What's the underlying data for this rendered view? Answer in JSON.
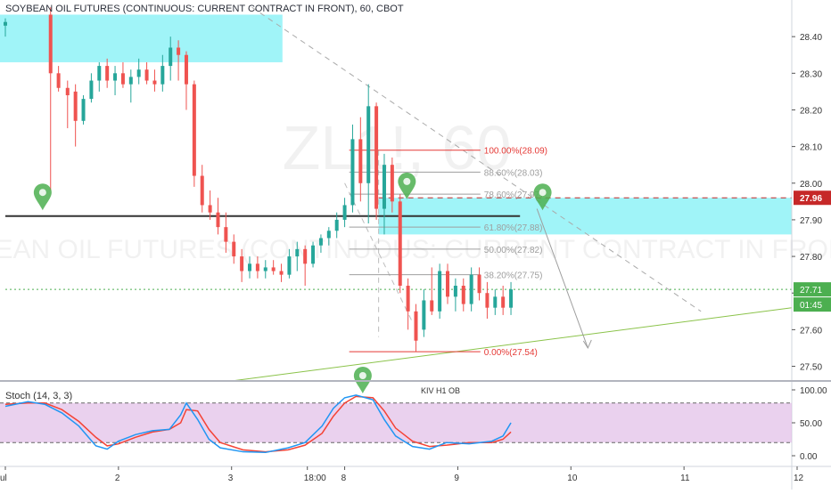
{
  "chart_data": {
    "type": "candlestick",
    "title": "SOYBEAN OIL FUTURES (CONTINUOUS: CURRENT CONTRACT IN FRONT), 60, CBOT",
    "watermark_symbol": "ZL1!, 60",
    "watermark_name": "SOYBEAN OIL FUTURES (CONTINUOUS: CURRENT CONTRACT IN FRONT)",
    "price_axis": {
      "ticks": [
        28.4,
        28.3,
        28.2,
        28.1,
        28.0,
        27.9,
        27.8,
        27.7,
        27.6,
        27.5
      ],
      "tick_labels": [
        "28.40",
        "28.30",
        "28.20",
        "28.10",
        "28.00",
        "27.90",
        "27.80",
        "27.70",
        "27.60",
        "27.50"
      ],
      "range": [
        27.46,
        28.5
      ],
      "last_price": 27.71,
      "last_price_label": "27.71",
      "countdown_label": "01:45",
      "level_marker": 27.96,
      "level_marker_label": "27.96"
    },
    "time_axis": {
      "labels": [
        "ul",
        "2",
        "3",
        "18:00",
        "8",
        "9",
        "10",
        "11",
        "12"
      ],
      "positions": [
        0,
        1,
        2,
        2.67,
        3,
        4,
        5,
        6,
        7
      ],
      "range": [
        0,
        7
      ]
    },
    "candles": [
      {
        "t": 0.0,
        "o": 28.43,
        "h": 28.45,
        "l": 28.4,
        "c": 28.44
      },
      {
        "t": 0.4,
        "o": 28.46,
        "h": 28.48,
        "l": 27.98,
        "c": 28.3
      },
      {
        "t": 0.47,
        "o": 28.3,
        "h": 28.32,
        "l": 28.25,
        "c": 28.26
      },
      {
        "t": 0.55,
        "o": 28.26,
        "h": 28.28,
        "l": 28.15,
        "c": 28.24
      },
      {
        "t": 0.62,
        "o": 28.25,
        "h": 28.27,
        "l": 28.1,
        "c": 28.17
      },
      {
        "t": 0.69,
        "o": 28.17,
        "h": 28.24,
        "l": 28.16,
        "c": 28.23
      },
      {
        "t": 0.76,
        "o": 28.23,
        "h": 28.3,
        "l": 28.22,
        "c": 28.28
      },
      {
        "t": 0.83,
        "o": 28.28,
        "h": 28.33,
        "l": 28.25,
        "c": 28.32
      },
      {
        "t": 0.9,
        "o": 28.32,
        "h": 28.34,
        "l": 28.26,
        "c": 28.28
      },
      {
        "t": 0.97,
        "o": 28.28,
        "h": 28.32,
        "l": 28.24,
        "c": 28.3
      },
      {
        "t": 1.04,
        "o": 28.3,
        "h": 28.33,
        "l": 28.26,
        "c": 28.27
      },
      {
        "t": 1.11,
        "o": 28.27,
        "h": 28.31,
        "l": 28.22,
        "c": 28.29
      },
      {
        "t": 1.18,
        "o": 28.29,
        "h": 28.34,
        "l": 28.27,
        "c": 28.31
      },
      {
        "t": 1.25,
        "o": 28.31,
        "h": 28.33,
        "l": 28.27,
        "c": 28.28
      },
      {
        "t": 1.32,
        "o": 28.28,
        "h": 28.31,
        "l": 28.25,
        "c": 28.27
      },
      {
        "t": 1.39,
        "o": 28.27,
        "h": 28.35,
        "l": 28.25,
        "c": 28.32
      },
      {
        "t": 1.46,
        "o": 28.32,
        "h": 28.4,
        "l": 28.28,
        "c": 28.37
      },
      {
        "t": 1.53,
        "o": 28.37,
        "h": 28.39,
        "l": 28.28,
        "c": 28.35
      },
      {
        "t": 1.6,
        "o": 28.35,
        "h": 28.36,
        "l": 28.2,
        "c": 28.27
      },
      {
        "t": 1.67,
        "o": 28.27,
        "h": 28.28,
        "l": 27.99,
        "c": 28.02
      },
      {
        "t": 1.74,
        "o": 28.02,
        "h": 28.05,
        "l": 27.92,
        "c": 27.94
      },
      {
        "t": 1.81,
        "o": 27.94,
        "h": 27.98,
        "l": 27.9,
        "c": 27.92
      },
      {
        "t": 1.88,
        "o": 27.92,
        "h": 27.96,
        "l": 27.86,
        "c": 27.88
      },
      {
        "t": 1.95,
        "o": 27.88,
        "h": 27.92,
        "l": 27.81,
        "c": 27.84
      },
      {
        "t": 2.02,
        "o": 27.84,
        "h": 27.86,
        "l": 27.78,
        "c": 27.8
      },
      {
        "t": 2.09,
        "o": 27.8,
        "h": 27.82,
        "l": 27.73,
        "c": 27.76
      },
      {
        "t": 2.16,
        "o": 27.76,
        "h": 27.8,
        "l": 27.74,
        "c": 27.78
      },
      {
        "t": 2.23,
        "o": 27.78,
        "h": 27.8,
        "l": 27.74,
        "c": 27.76
      },
      {
        "t": 2.3,
        "o": 27.76,
        "h": 27.79,
        "l": 27.74,
        "c": 27.77
      },
      {
        "t": 2.37,
        "o": 27.77,
        "h": 27.79,
        "l": 27.75,
        "c": 27.76
      },
      {
        "t": 2.44,
        "o": 27.76,
        "h": 27.78,
        "l": 27.73,
        "c": 27.75
      },
      {
        "t": 2.51,
        "o": 27.75,
        "h": 27.82,
        "l": 27.74,
        "c": 27.8
      },
      {
        "t": 2.58,
        "o": 27.8,
        "h": 27.84,
        "l": 27.76,
        "c": 27.82
      },
      {
        "t": 2.65,
        "o": 27.82,
        "h": 27.83,
        "l": 27.72,
        "c": 27.78
      },
      {
        "t": 2.72,
        "o": 27.78,
        "h": 27.84,
        "l": 27.77,
        "c": 27.83
      },
      {
        "t": 2.79,
        "o": 27.83,
        "h": 27.86,
        "l": 27.81,
        "c": 27.85
      },
      {
        "t": 2.86,
        "o": 27.85,
        "h": 27.88,
        "l": 27.83,
        "c": 27.87
      },
      {
        "t": 2.93,
        "o": 27.87,
        "h": 27.92,
        "l": 27.85,
        "c": 27.9
      },
      {
        "t": 3.0,
        "o": 27.9,
        "h": 27.96,
        "l": 27.88,
        "c": 27.94
      },
      {
        "t": 3.07,
        "o": 27.94,
        "h": 28.16,
        "l": 27.92,
        "c": 28.12
      },
      {
        "t": 3.14,
        "o": 28.12,
        "h": 28.18,
        "l": 27.95,
        "c": 28.0
      },
      {
        "t": 3.21,
        "o": 28.0,
        "h": 28.27,
        "l": 27.89,
        "c": 28.21
      },
      {
        "t": 3.28,
        "o": 28.21,
        "h": 28.22,
        "l": 27.9,
        "c": 27.93
      },
      {
        "t": 3.35,
        "o": 27.93,
        "h": 28.08,
        "l": 27.86,
        "c": 28.05
      },
      {
        "t": 3.42,
        "o": 28.05,
        "h": 28.07,
        "l": 27.92,
        "c": 27.95
      },
      {
        "t": 3.49,
        "o": 27.95,
        "h": 27.97,
        "l": 27.7,
        "c": 27.72
      },
      {
        "t": 3.56,
        "o": 27.72,
        "h": 27.74,
        "l": 27.6,
        "c": 27.65
      },
      {
        "t": 3.63,
        "o": 27.65,
        "h": 27.67,
        "l": 27.54,
        "c": 27.57
      },
      {
        "t": 3.7,
        "o": 27.6,
        "h": 27.71,
        "l": 27.58,
        "c": 27.68
      },
      {
        "t": 3.77,
        "o": 27.68,
        "h": 27.77,
        "l": 27.64,
        "c": 27.65
      },
      {
        "t": 3.84,
        "o": 27.65,
        "h": 27.78,
        "l": 27.63,
        "c": 27.76
      },
      {
        "t": 3.91,
        "o": 27.76,
        "h": 27.78,
        "l": 27.67,
        "c": 27.69
      },
      {
        "t": 3.98,
        "o": 27.69,
        "h": 27.74,
        "l": 27.65,
        "c": 27.72
      },
      {
        "t": 4.05,
        "o": 27.72,
        "h": 27.74,
        "l": 27.65,
        "c": 27.67
      },
      {
        "t": 4.12,
        "o": 27.67,
        "h": 27.77,
        "l": 27.65,
        "c": 27.75
      },
      {
        "t": 4.19,
        "o": 27.75,
        "h": 27.77,
        "l": 27.68,
        "c": 27.7
      },
      {
        "t": 4.26,
        "o": 27.7,
        "h": 27.73,
        "l": 27.63,
        "c": 27.66
      },
      {
        "t": 4.33,
        "o": 27.66,
        "h": 27.71,
        "l": 27.64,
        "c": 27.69
      },
      {
        "t": 4.4,
        "o": 27.69,
        "h": 27.72,
        "l": 27.64,
        "c": 27.66
      },
      {
        "t": 4.47,
        "o": 27.66,
        "h": 27.73,
        "l": 27.64,
        "c": 27.71
      }
    ],
    "fibonacci": {
      "levels": [
        {
          "ratio": 1.0,
          "price": 28.09,
          "label": "100.00%(28.09)",
          "color": "#e53935"
        },
        {
          "ratio": 0.886,
          "price": 28.03,
          "label": "88.60%(28.03)",
          "color": "#9e9e9e"
        },
        {
          "ratio": 0.786,
          "price": 27.97,
          "label": "78.60%(27.97)",
          "color": "#9e9e9e"
        },
        {
          "ratio": 0.618,
          "price": 27.88,
          "label": "61.80%(27.88)",
          "color": "#9e9e9e"
        },
        {
          "ratio": 0.5,
          "price": 27.82,
          "label": "50.00%(27.82)",
          "color": "#9e9e9e"
        },
        {
          "ratio": 0.382,
          "price": 27.75,
          "label": "38.20%(27.75)",
          "color": "#9e9e9e"
        },
        {
          "ratio": 0.0,
          "price": 27.54,
          "label": "0.00%(27.54)",
          "color": "#e53935"
        }
      ],
      "t_start": 3.04,
      "t_end": 4.2
    },
    "zones": [
      {
        "t_start": 0.0,
        "t_end": 2.45,
        "price_top": 28.46,
        "price_bottom": 28.33,
        "color": "#80f0f5"
      },
      {
        "t_start": 3.3,
        "t_end": 7.0,
        "price_top": 27.96,
        "price_bottom": 27.86,
        "color": "#80f0f5"
      }
    ],
    "lines": [
      {
        "name": "horizontal-support",
        "t1": 0.0,
        "p1": 27.91,
        "t2": 4.55,
        "p2": 27.91,
        "color": "#333333",
        "style": "solid"
      },
      {
        "name": "descending-trendline",
        "t1": 2.18,
        "p1": 28.48,
        "t2": 6.15,
        "p2": 27.65,
        "color": "#aaaaaa",
        "style": "dashed"
      },
      {
        "name": "ascending-trendline",
        "t1": 2.0,
        "p1": 27.46,
        "t2": 7.0,
        "p2": 27.66,
        "color": "#8bc34a",
        "style": "solid"
      },
      {
        "name": "forecast-arrow",
        "t1": 4.7,
        "p1": 27.93,
        "t2": 5.15,
        "p2": 27.55,
        "color": "#9e9e9e",
        "style": "solid"
      },
      {
        "name": "level-27-96",
        "t1": 3.3,
        "p1": 27.96,
        "t2": 7.0,
        "p2": 27.96,
        "color": "#c62828",
        "style": "dashed"
      },
      {
        "name": "last-price-line",
        "t1": 0.0,
        "p1": 27.71,
        "t2": 7.0,
        "p2": 27.71,
        "color": "#4caf50",
        "style": "dotted"
      },
      {
        "name": "vertical-dashed",
        "t1": 3.3,
        "p1": 28.09,
        "t2": 3.3,
        "p2": 27.58,
        "color": "#bdbdbd",
        "style": "dashed"
      },
      {
        "name": "channel-dashed",
        "t1": 3.0,
        "p1": 28.0,
        "t2": 3.6,
        "p2": 27.62,
        "color": "#bdbdbd",
        "style": "dashed"
      }
    ],
    "markers": [
      {
        "t": 0.33,
        "price": 27.96,
        "color": "#4caf50"
      },
      {
        "t": 3.55,
        "price": 27.99,
        "color": "#4caf50"
      },
      {
        "t": 4.75,
        "price": 27.96,
        "color": "#4caf50"
      },
      {
        "t": 3.16,
        "price": 27.46,
        "color": "#4caf50"
      }
    ],
    "stochastic": {
      "label": "Stoch (14, 3, 3)",
      "annotation": "KIV H1 OB",
      "ticks": [
        100,
        50,
        0
      ],
      "tick_labels": [
        "100.00",
        "50.00",
        "0.00"
      ],
      "bands": [
        80,
        20
      ],
      "k": [
        {
          "t": 0.0,
          "v": 75
        },
        {
          "t": 0.2,
          "v": 82
        },
        {
          "t": 0.35,
          "v": 78
        },
        {
          "t": 0.5,
          "v": 65
        },
        {
          "t": 0.65,
          "v": 45
        },
        {
          "t": 0.8,
          "v": 15
        },
        {
          "t": 0.9,
          "v": 10
        },
        {
          "t": 1.0,
          "v": 22
        },
        {
          "t": 1.15,
          "v": 32
        },
        {
          "t": 1.3,
          "v": 38
        },
        {
          "t": 1.45,
          "v": 40
        },
        {
          "t": 1.55,
          "v": 62
        },
        {
          "t": 1.6,
          "v": 80
        },
        {
          "t": 1.7,
          "v": 55
        },
        {
          "t": 1.8,
          "v": 25
        },
        {
          "t": 1.9,
          "v": 12
        },
        {
          "t": 2.1,
          "v": 6
        },
        {
          "t": 2.3,
          "v": 5
        },
        {
          "t": 2.5,
          "v": 12
        },
        {
          "t": 2.65,
          "v": 20
        },
        {
          "t": 2.8,
          "v": 45
        },
        {
          "t": 2.9,
          "v": 72
        },
        {
          "t": 3.0,
          "v": 88
        },
        {
          "t": 3.1,
          "v": 92
        },
        {
          "t": 3.25,
          "v": 85
        },
        {
          "t": 3.35,
          "v": 55
        },
        {
          "t": 3.45,
          "v": 30
        },
        {
          "t": 3.6,
          "v": 14
        },
        {
          "t": 3.75,
          "v": 10
        },
        {
          "t": 3.9,
          "v": 20
        },
        {
          "t": 4.1,
          "v": 18
        },
        {
          "t": 4.3,
          "v": 22
        },
        {
          "t": 4.4,
          "v": 30
        },
        {
          "t": 4.47,
          "v": 50
        }
      ],
      "d": [
        {
          "t": 0.0,
          "v": 78
        },
        {
          "t": 0.2,
          "v": 80
        },
        {
          "t": 0.35,
          "v": 80
        },
        {
          "t": 0.5,
          "v": 70
        },
        {
          "t": 0.65,
          "v": 52
        },
        {
          "t": 0.8,
          "v": 28
        },
        {
          "t": 0.9,
          "v": 15
        },
        {
          "t": 1.0,
          "v": 18
        },
        {
          "t": 1.15,
          "v": 28
        },
        {
          "t": 1.3,
          "v": 36
        },
        {
          "t": 1.45,
          "v": 40
        },
        {
          "t": 1.55,
          "v": 50
        },
        {
          "t": 1.6,
          "v": 70
        },
        {
          "t": 1.7,
          "v": 68
        },
        {
          "t": 1.8,
          "v": 40
        },
        {
          "t": 1.9,
          "v": 20
        },
        {
          "t": 2.1,
          "v": 9
        },
        {
          "t": 2.3,
          "v": 6
        },
        {
          "t": 2.5,
          "v": 9
        },
        {
          "t": 2.65,
          "v": 16
        },
        {
          "t": 2.8,
          "v": 34
        },
        {
          "t": 2.9,
          "v": 60
        },
        {
          "t": 3.0,
          "v": 80
        },
        {
          "t": 3.1,
          "v": 90
        },
        {
          "t": 3.25,
          "v": 88
        },
        {
          "t": 3.35,
          "v": 68
        },
        {
          "t": 3.45,
          "v": 42
        },
        {
          "t": 3.6,
          "v": 22
        },
        {
          "t": 3.75,
          "v": 14
        },
        {
          "t": 3.9,
          "v": 16
        },
        {
          "t": 4.1,
          "v": 20
        },
        {
          "t": 4.3,
          "v": 20
        },
        {
          "t": 4.4,
          "v": 25
        },
        {
          "t": 4.47,
          "v": 36
        }
      ],
      "k_color": "#2196f3",
      "d_color": "#f44336"
    },
    "colors": {
      "up": "#26a69a",
      "down": "#ef5350",
      "stoch_band": "#e1bee7",
      "price_label_last": "#4caf50",
      "price_label_level": "#c62828"
    }
  }
}
